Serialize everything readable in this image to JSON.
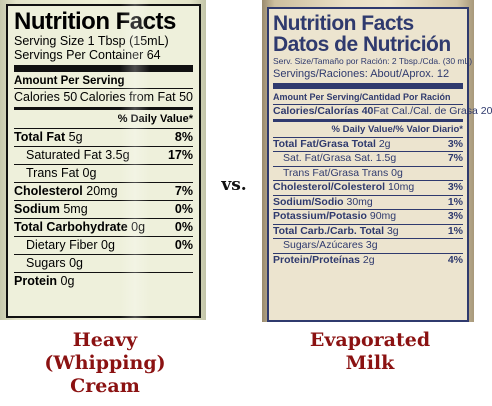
{
  "left_label": {
    "title": "Nutrition Facts",
    "serving_size": "Serving Size 1 Tbsp (15mL)",
    "servings_per_container": "Servings Per Container 64",
    "amount_per_serving": "Amount Per Serving",
    "calories": "Calories 50",
    "calories_fat": "Calories from Fat 50",
    "dv_header": "% Daily Value*",
    "rows": [
      {
        "label": "Total Fat",
        "amount": "5g",
        "dv": "8%",
        "bold": true,
        "indent": false
      },
      {
        "label": "Saturated Fat",
        "amount": "3.5g",
        "dv": "17%",
        "bold": false,
        "indent": true
      },
      {
        "label": "Trans Fat",
        "amount": "0g",
        "dv": "",
        "bold": false,
        "indent": true
      },
      {
        "label": "Cholesterol",
        "amount": "20mg",
        "dv": "7%",
        "bold": true,
        "indent": false
      },
      {
        "label": "Sodium",
        "amount": "5mg",
        "dv": "0%",
        "bold": true,
        "indent": false
      },
      {
        "label": "Total Carbohydrate",
        "amount": "0g",
        "dv": "0%",
        "bold": true,
        "indent": false
      },
      {
        "label": "Dietary Fiber",
        "amount": "0g",
        "dv": "0%",
        "bold": false,
        "indent": true
      },
      {
        "label": "Sugars",
        "amount": "0g",
        "dv": "",
        "bold": false,
        "indent": true
      },
      {
        "label": "Protein",
        "amount": "0g",
        "dv": "",
        "bold": true,
        "indent": false
      }
    ]
  },
  "right_label": {
    "title": "Nutrition Facts",
    "subtitle": "Datos de Nutrición",
    "serving_size": "Serv. Size/Tamaño por Ración: 2 Tbsp./Cda. (30 mL)",
    "servings": "Servings/Raciones: About/Aprox. 12",
    "amount_per_serving": "Amount Per Serving/Cantidad Por Ración",
    "calories": "Calories/Calorías 40",
    "calories_fat": "Fat Cal./Cal. de Grasa 20",
    "dv_header": "% Daily Value/% Valor Diario*",
    "rows": [
      {
        "label": "Total Fat/Grasa Total",
        "amount": "2g",
        "dv": "3%",
        "bold": true,
        "indent": false
      },
      {
        "label": "Sat. Fat/Grasa Sat.",
        "amount": "1.5g",
        "dv": "7%",
        "bold": false,
        "indent": true
      },
      {
        "label": "Trans Fat/Grasa Trans",
        "amount": "0g",
        "dv": "",
        "bold": false,
        "indent": true
      },
      {
        "label": "Cholesterol/Colesterol",
        "amount": "10mg",
        "dv": "3%",
        "bold": true,
        "indent": false
      },
      {
        "label": "Sodium/Sodio",
        "amount": "30mg",
        "dv": "1%",
        "bold": true,
        "indent": false
      },
      {
        "label": "Potassium/Potasio",
        "amount": "90mg",
        "dv": "3%",
        "bold": true,
        "indent": false
      },
      {
        "label": "Total Carb./Carb. Total",
        "amount": "3g",
        "dv": "1%",
        "bold": true,
        "indent": false
      },
      {
        "label": "Sugars/Azúcares",
        "amount": "3g",
        "dv": "",
        "bold": false,
        "indent": true
      },
      {
        "label": "Protein/Proteínas",
        "amount": "2g",
        "dv": "4%",
        "bold": true,
        "indent": false
      }
    ]
  },
  "vs_text": "vs.",
  "captions": {
    "left": [
      "Heavy",
      "(Whipping)",
      "Cream"
    ],
    "right": [
      "Evaporated",
      "Milk"
    ]
  }
}
